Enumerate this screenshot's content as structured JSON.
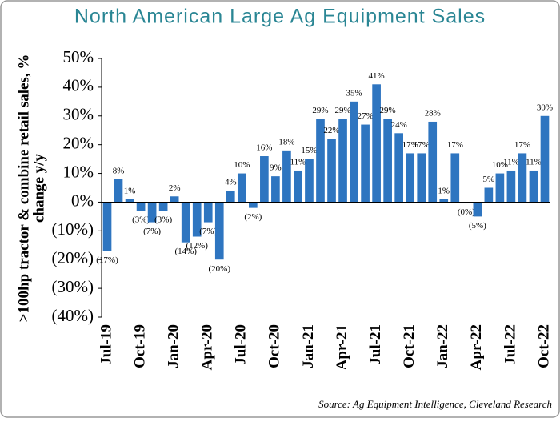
{
  "chart_data": {
    "type": "bar",
    "title": "North American Large Ag Equipment Sales",
    "y_label": [
      ">100hp tractor & combine retail sales, %",
      "change y/y"
    ],
    "source": "Source: Ag Equipment Intelligence, Cleveland Research",
    "color": "#2e75c0",
    "categories": [
      "Jul-19",
      null,
      null,
      "Oct-19",
      null,
      null,
      "Jan-20",
      null,
      null,
      "Apr-20",
      null,
      null,
      "Jul-20",
      null,
      null,
      "Oct-20",
      null,
      null,
      "Jan-21",
      null,
      null,
      "Apr-21",
      null,
      null,
      "Jul-21",
      null,
      null,
      "Oct-21",
      null,
      null,
      "Jan-22",
      null,
      null,
      "Apr-22",
      null,
      null,
      "Jul-22",
      null,
      null,
      "Oct-22"
    ],
    "values": [
      -17,
      8,
      1,
      -3,
      -7,
      -3,
      2,
      -14,
      -12,
      -7,
      -20,
      4,
      10,
      -2,
      16,
      9,
      18,
      11,
      15,
      29,
      22,
      29,
      35,
      27,
      41,
      29,
      24,
      17,
      17,
      28,
      1,
      17,
      -0.3,
      -5,
      5,
      10,
      11,
      17,
      11,
      30
    ],
    "value_labels": [
      "(17%)",
      "8%",
      "1%",
      "(3%)",
      "(7%)",
      "(3%)",
      "2%",
      "(14%)",
      "(12%)",
      "(7%)",
      "(20%)",
      "4%",
      "10%",
      "(2%)",
      "16%",
      "9%",
      "18%",
      "11%",
      "15%",
      "29%",
      "22%",
      "29%",
      "35%",
      "27%",
      "41%",
      "29%",
      "24%",
      "17%",
      "17%",
      "28%",
      "1%",
      "17%",
      "(0%)",
      "(5%)",
      "5%",
      "10%",
      "11%",
      "17%",
      "11%",
      "30%"
    ],
    "ylim": [
      -40,
      50
    ],
    "yticks": [
      {
        "value": -40,
        "label": "(40%)"
      },
      {
        "value": -30,
        "label": "(30%)"
      },
      {
        "value": -20,
        "label": "(20%)"
      },
      {
        "value": -10,
        "label": "(10%)"
      },
      {
        "value": 0,
        "label": "0%"
      },
      {
        "value": 10,
        "label": "10%"
      },
      {
        "value": 20,
        "label": "20%"
      },
      {
        "value": 30,
        "label": "30%"
      },
      {
        "value": 40,
        "label": "40%"
      },
      {
        "value": 50,
        "label": "50%"
      }
    ]
  }
}
